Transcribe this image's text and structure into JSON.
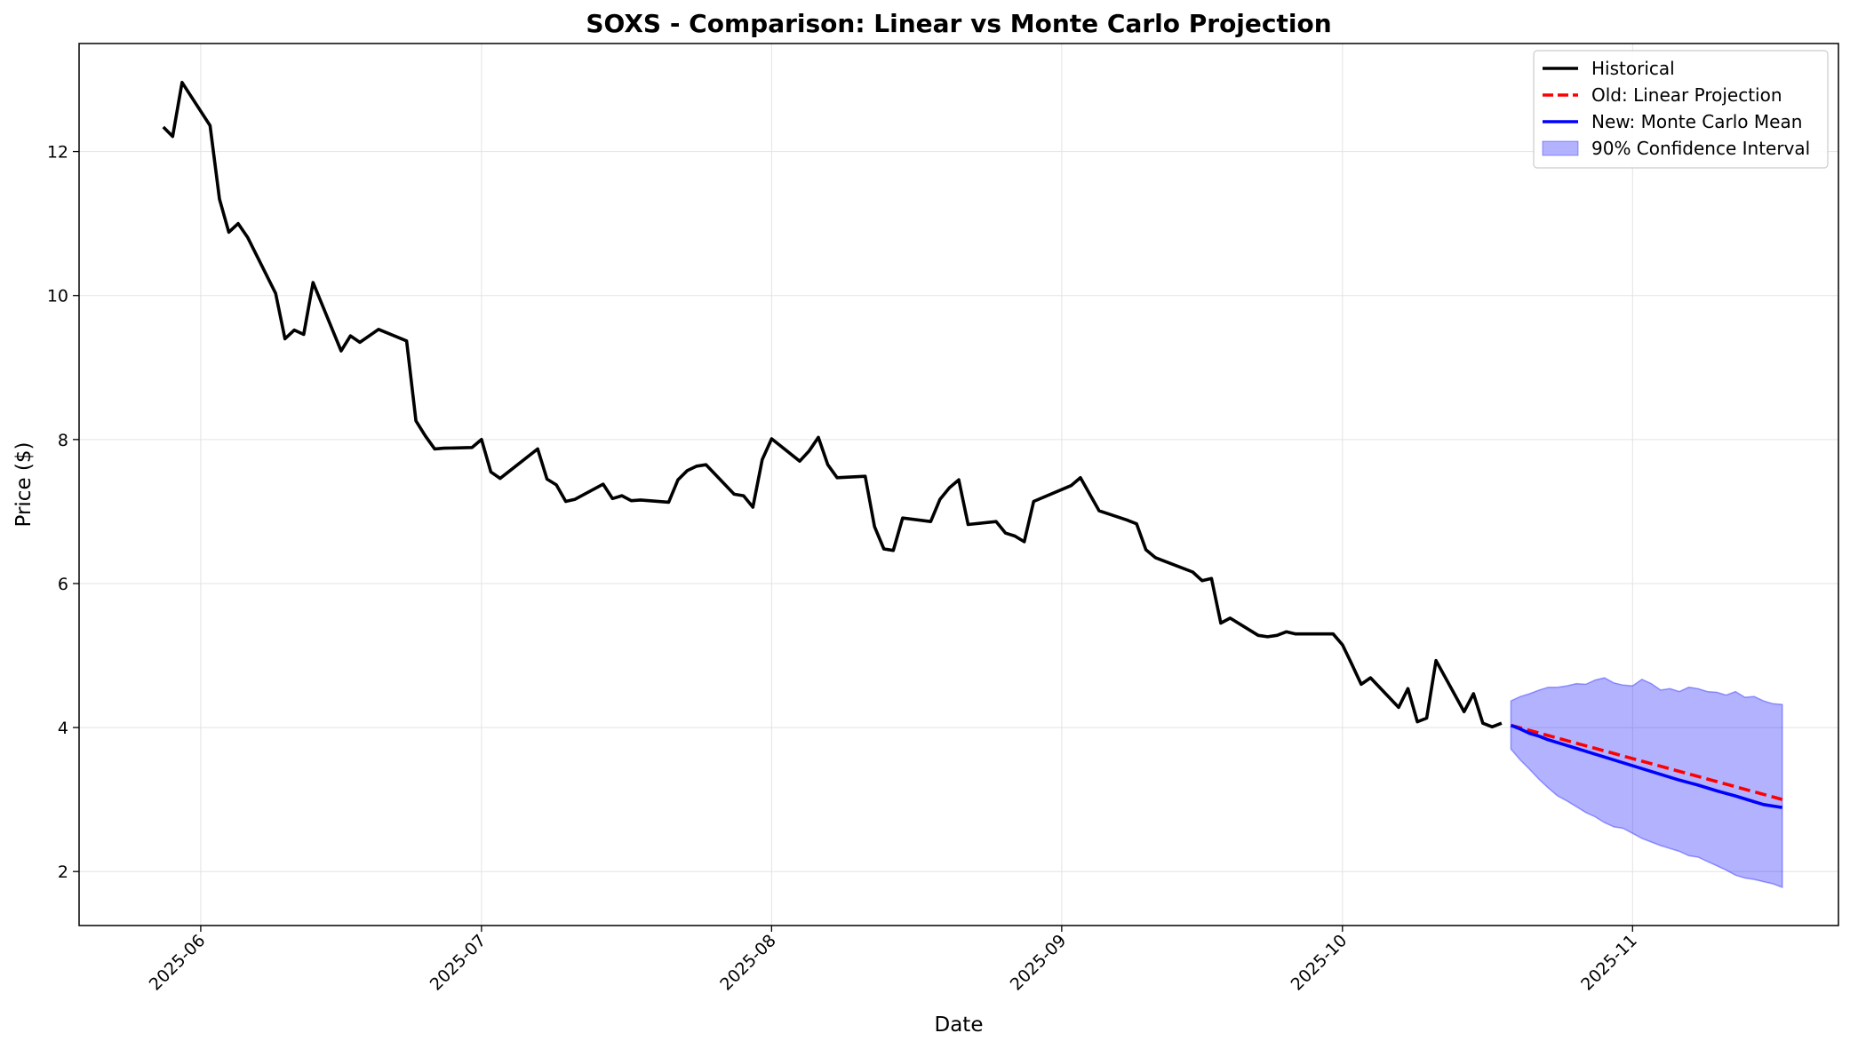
{
  "chart_data": {
    "type": "line",
    "title": "SOXS - Comparison: Linear vs Monte Carlo Projection",
    "xlabel": "Date",
    "ylabel": "Price ($)",
    "x_range": [
      "2025-05-19",
      "2025-11-23"
    ],
    "ylim": [
      1.25,
      13.5
    ],
    "x_ticks": [
      "2025-06-01",
      "2025-07-01",
      "2025-08-01",
      "2025-09-01",
      "2025-10-01",
      "2025-11-01"
    ],
    "x_tick_labels": [
      "2025-06",
      "2025-07",
      "2025-08",
      "2025-09",
      "2025-10",
      "2025-11"
    ],
    "y_ticks": [
      2,
      4,
      6,
      8,
      10,
      12
    ],
    "y_tick_labels": [
      "2",
      "4",
      "6",
      "8",
      "10",
      "12"
    ],
    "grid": true,
    "legend_position": "top-right",
    "legend": [
      {
        "label": "Historical",
        "style": "solid",
        "color": "#000000"
      },
      {
        "label": "Old: Linear Projection",
        "style": "dashed",
        "color": "#ff0000"
      },
      {
        "label": "New: Monte Carlo Mean",
        "style": "solid",
        "color": "#0000ff"
      },
      {
        "label": "90% Confidence Interval",
        "style": "band",
        "color": "#0000ff"
      }
    ],
    "series": [
      {
        "name": "Historical",
        "color": "#000000",
        "points": [
          [
            "2025-05-28",
            12.34
          ],
          [
            "2025-05-29",
            12.21
          ],
          [
            "2025-05-30",
            12.96
          ],
          [
            "2025-06-02",
            12.36
          ],
          [
            "2025-06-03",
            11.34
          ],
          [
            "2025-06-04",
            10.88
          ],
          [
            "2025-06-05",
            11.0
          ],
          [
            "2025-06-06",
            10.81
          ],
          [
            "2025-06-09",
            10.03
          ],
          [
            "2025-06-10",
            9.4
          ],
          [
            "2025-06-11",
            9.52
          ],
          [
            "2025-06-12",
            9.46
          ],
          [
            "2025-06-13",
            10.18
          ],
          [
            "2025-06-16",
            9.23
          ],
          [
            "2025-06-17",
            9.44
          ],
          [
            "2025-06-18",
            9.35
          ],
          [
            "2025-06-20",
            9.53
          ],
          [
            "2025-06-23",
            9.37
          ],
          [
            "2025-06-24",
            8.26
          ],
          [
            "2025-06-25",
            8.05
          ],
          [
            "2025-06-26",
            7.87
          ],
          [
            "2025-06-27",
            7.88
          ],
          [
            "2025-06-30",
            7.89
          ],
          [
            "2025-07-01",
            8.0
          ],
          [
            "2025-07-02",
            7.55
          ],
          [
            "2025-07-03",
            7.46
          ],
          [
            "2025-07-07",
            7.87
          ],
          [
            "2025-07-08",
            7.45
          ],
          [
            "2025-07-09",
            7.37
          ],
          [
            "2025-07-10",
            7.14
          ],
          [
            "2025-07-11",
            7.17
          ],
          [
            "2025-07-14",
            7.38
          ],
          [
            "2025-07-15",
            7.18
          ],
          [
            "2025-07-16",
            7.22
          ],
          [
            "2025-07-17",
            7.15
          ],
          [
            "2025-07-18",
            7.16
          ],
          [
            "2025-07-21",
            7.13
          ],
          [
            "2025-07-22",
            7.44
          ],
          [
            "2025-07-23",
            7.57
          ],
          [
            "2025-07-24",
            7.63
          ],
          [
            "2025-07-25",
            7.65
          ],
          [
            "2025-07-28",
            7.24
          ],
          [
            "2025-07-29",
            7.22
          ],
          [
            "2025-07-30",
            7.06
          ],
          [
            "2025-07-31",
            7.72
          ],
          [
            "2025-08-01",
            8.01
          ],
          [
            "2025-08-04",
            7.7
          ],
          [
            "2025-08-05",
            7.84
          ],
          [
            "2025-08-06",
            8.03
          ],
          [
            "2025-08-07",
            7.65
          ],
          [
            "2025-08-08",
            7.47
          ],
          [
            "2025-08-11",
            7.49
          ],
          [
            "2025-08-12",
            6.79
          ],
          [
            "2025-08-13",
            6.48
          ],
          [
            "2025-08-14",
            6.46
          ],
          [
            "2025-08-15",
            6.91
          ],
          [
            "2025-08-18",
            6.86
          ],
          [
            "2025-08-19",
            7.17
          ],
          [
            "2025-08-20",
            7.33
          ],
          [
            "2025-08-21",
            7.44
          ],
          [
            "2025-08-22",
            6.82
          ],
          [
            "2025-08-25",
            6.86
          ],
          [
            "2025-08-26",
            6.7
          ],
          [
            "2025-08-27",
            6.66
          ],
          [
            "2025-08-28",
            6.58
          ],
          [
            "2025-08-29",
            7.14
          ],
          [
            "2025-09-02",
            7.36
          ],
          [
            "2025-09-03",
            7.47
          ],
          [
            "2025-09-04",
            7.24
          ],
          [
            "2025-09-05",
            7.01
          ],
          [
            "2025-09-08",
            6.88
          ],
          [
            "2025-09-09",
            6.83
          ],
          [
            "2025-09-10",
            6.47
          ],
          [
            "2025-09-11",
            6.36
          ],
          [
            "2025-09-15",
            6.16
          ],
          [
            "2025-09-16",
            6.04
          ],
          [
            "2025-09-17",
            6.07
          ],
          [
            "2025-09-18",
            5.45
          ],
          [
            "2025-09-19",
            5.52
          ],
          [
            "2025-09-22",
            5.28
          ],
          [
            "2025-09-23",
            5.26
          ],
          [
            "2025-09-24",
            5.28
          ],
          [
            "2025-09-25",
            5.33
          ],
          [
            "2025-09-26",
            5.3
          ],
          [
            "2025-09-29",
            5.3
          ],
          [
            "2025-09-30",
            5.3
          ],
          [
            "2025-10-01",
            5.15
          ],
          [
            "2025-10-02",
            4.88
          ],
          [
            "2025-10-03",
            4.6
          ],
          [
            "2025-10-04",
            4.69
          ],
          [
            "2025-10-07",
            4.28
          ],
          [
            "2025-10-08",
            4.54
          ],
          [
            "2025-10-09",
            4.08
          ],
          [
            "2025-10-10",
            4.13
          ],
          [
            "2025-10-11",
            4.93
          ],
          [
            "2025-10-14",
            4.22
          ],
          [
            "2025-10-15",
            4.47
          ],
          [
            "2025-10-16",
            4.06
          ],
          [
            "2025-10-17",
            4.01
          ],
          [
            "2025-10-18",
            4.06
          ]
        ]
      },
      {
        "name": "Old: Linear Projection",
        "color": "#ff0000",
        "dashed": true,
        "points": [
          [
            "2025-10-19",
            4.03
          ],
          [
            "2025-11-17",
            3.0
          ]
        ]
      },
      {
        "name": "New: Monte Carlo Mean",
        "color": "#0000ff",
        "points": [
          [
            "2025-10-19",
            4.03
          ],
          [
            "2025-10-20",
            3.98
          ],
          [
            "2025-10-21",
            3.92
          ],
          [
            "2025-10-22",
            3.88
          ],
          [
            "2025-10-23",
            3.83
          ],
          [
            "2025-10-25",
            3.75
          ],
          [
            "2025-10-27",
            3.67
          ],
          [
            "2025-10-29",
            3.59
          ],
          [
            "2025-10-31",
            3.51
          ],
          [
            "2025-11-02",
            3.43
          ],
          [
            "2025-11-04",
            3.35
          ],
          [
            "2025-11-06",
            3.27
          ],
          [
            "2025-11-08",
            3.2
          ],
          [
            "2025-11-10",
            3.12
          ],
          [
            "2025-11-12",
            3.05
          ],
          [
            "2025-11-14",
            2.97
          ],
          [
            "2025-11-15",
            2.93
          ],
          [
            "2025-11-17",
            2.89
          ]
        ]
      }
    ],
    "confidence_band": {
      "name": "90% Confidence Interval",
      "color": "#0000ff",
      "upper": [
        [
          "2025-10-19",
          4.37
        ],
        [
          "2025-10-20",
          4.43
        ],
        [
          "2025-10-21",
          4.47
        ],
        [
          "2025-10-22",
          4.52
        ],
        [
          "2025-10-23",
          4.56
        ],
        [
          "2025-10-24",
          4.56
        ],
        [
          "2025-10-25",
          4.58
        ],
        [
          "2025-10-26",
          4.61
        ],
        [
          "2025-10-27",
          4.6
        ],
        [
          "2025-10-28",
          4.66
        ],
        [
          "2025-10-29",
          4.69
        ],
        [
          "2025-10-30",
          4.62
        ],
        [
          "2025-10-31",
          4.59
        ],
        [
          "2025-11-01",
          4.58
        ],
        [
          "2025-11-02",
          4.67
        ],
        [
          "2025-11-03",
          4.61
        ],
        [
          "2025-11-04",
          4.52
        ],
        [
          "2025-11-05",
          4.54
        ],
        [
          "2025-11-06",
          4.5
        ],
        [
          "2025-11-07",
          4.56
        ],
        [
          "2025-11-08",
          4.54
        ],
        [
          "2025-11-09",
          4.5
        ],
        [
          "2025-11-10",
          4.49
        ],
        [
          "2025-11-11",
          4.45
        ],
        [
          "2025-11-12",
          4.5
        ],
        [
          "2025-11-13",
          4.42
        ],
        [
          "2025-11-14",
          4.43
        ],
        [
          "2025-11-15",
          4.37
        ],
        [
          "2025-11-16",
          4.33
        ],
        [
          "2025-11-17",
          4.32
        ]
      ],
      "lower": [
        [
          "2025-10-19",
          3.7
        ],
        [
          "2025-10-20",
          3.55
        ],
        [
          "2025-10-21",
          3.42
        ],
        [
          "2025-10-22",
          3.28
        ],
        [
          "2025-10-23",
          3.16
        ],
        [
          "2025-10-24",
          3.05
        ],
        [
          "2025-10-25",
          2.98
        ],
        [
          "2025-10-26",
          2.9
        ],
        [
          "2025-10-27",
          2.82
        ],
        [
          "2025-10-28",
          2.76
        ],
        [
          "2025-10-29",
          2.68
        ],
        [
          "2025-10-30",
          2.62
        ],
        [
          "2025-10-31",
          2.6
        ],
        [
          "2025-11-01",
          2.53
        ],
        [
          "2025-11-02",
          2.46
        ],
        [
          "2025-11-03",
          2.41
        ],
        [
          "2025-11-04",
          2.36
        ],
        [
          "2025-11-05",
          2.32
        ],
        [
          "2025-11-06",
          2.28
        ],
        [
          "2025-11-07",
          2.22
        ],
        [
          "2025-11-08",
          2.2
        ],
        [
          "2025-11-09",
          2.14
        ],
        [
          "2025-11-10",
          2.08
        ],
        [
          "2025-11-11",
          2.02
        ],
        [
          "2025-11-12",
          1.95
        ],
        [
          "2025-11-13",
          1.91
        ],
        [
          "2025-11-14",
          1.89
        ],
        [
          "2025-11-15",
          1.86
        ],
        [
          "2025-11-16",
          1.83
        ],
        [
          "2025-11-17",
          1.78
        ]
      ]
    }
  }
}
